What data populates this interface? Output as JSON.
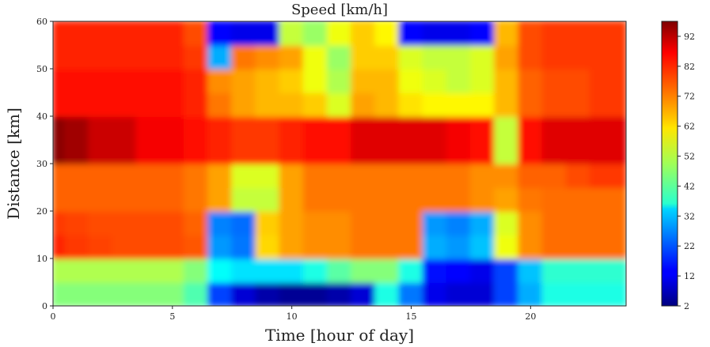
{
  "chart_data": {
    "type": "heatmap",
    "title": "Speed [km/h]",
    "xlabel": "Time [hour of day]",
    "ylabel": "Distance [km]",
    "xlim": [
      0,
      24
    ],
    "ylim": [
      0,
      60
    ],
    "xticks": [
      0,
      5,
      10,
      15,
      20
    ],
    "yticks": [
      0,
      10,
      20,
      30,
      40,
      50,
      60
    ],
    "colorbar": {
      "min": 2,
      "max": 97,
      "ticks": [
        2,
        12,
        22,
        32,
        42,
        52,
        62,
        72,
        82,
        92
      ]
    },
    "x": [
      0,
      1,
      2,
      3,
      4,
      5,
      6,
      7,
      8,
      9,
      10,
      11,
      12,
      13,
      14,
      15,
      16,
      17,
      18,
      19,
      20,
      21,
      22,
      23,
      24
    ],
    "y": [
      2.5,
      7.5,
      12.5,
      17.5,
      22.5,
      27.5,
      32.5,
      37.5,
      42.5,
      47.5,
      52.5,
      57.5
    ],
    "z": [
      [
        50,
        50,
        50,
        50,
        50,
        50,
        45,
        20,
        10,
        6,
        4,
        4,
        6,
        10,
        40,
        25,
        12,
        10,
        10,
        20,
        30,
        40,
        40,
        40,
        40
      ],
      [
        54,
        54,
        54,
        54,
        54,
        54,
        50,
        38,
        35,
        35,
        35,
        40,
        46,
        50,
        50,
        40,
        15,
        14,
        12,
        20,
        32,
        42,
        42,
        42,
        42
      ],
      [
        82,
        80,
        79,
        78,
        78,
        78,
        77,
        28,
        25,
        65,
        70,
        72,
        72,
        74,
        74,
        74,
        30,
        28,
        32,
        60,
        72,
        75,
        75,
        75,
        75
      ],
      [
        80,
        79,
        78,
        78,
        78,
        78,
        76,
        26,
        24,
        66,
        70,
        72,
        72,
        74,
        74,
        74,
        28,
        26,
        30,
        58,
        72,
        75,
        75,
        75,
        75
      ],
      [
        76,
        76,
        76,
        76,
        76,
        76,
        74,
        70,
        56,
        56,
        70,
        74,
        74,
        74,
        74,
        74,
        74,
        74,
        72,
        70,
        74,
        75,
        75,
        75,
        75
      ],
      [
        76,
        76,
        76,
        76,
        76,
        76,
        74,
        70,
        58,
        58,
        70,
        74,
        74,
        74,
        74,
        74,
        74,
        74,
        72,
        72,
        76,
        76,
        78,
        80,
        80
      ],
      [
        96,
        94,
        90,
        90,
        86,
        86,
        84,
        82,
        80,
        80,
        82,
        84,
        84,
        88,
        88,
        88,
        88,
        86,
        84,
        56,
        84,
        88,
        88,
        88,
        88
      ],
      [
        96,
        94,
        90,
        90,
        86,
        86,
        84,
        82,
        80,
        80,
        82,
        84,
        84,
        88,
        88,
        88,
        88,
        86,
        84,
        56,
        84,
        88,
        88,
        88,
        88
      ],
      [
        84,
        84,
        84,
        84,
        84,
        84,
        82,
        74,
        70,
        68,
        68,
        66,
        58,
        70,
        68,
        64,
        62,
        62,
        62,
        68,
        76,
        78,
        78,
        80,
        80
      ],
      [
        84,
        84,
        84,
        84,
        84,
        84,
        82,
        72,
        70,
        68,
        66,
        60,
        54,
        68,
        68,
        60,
        58,
        56,
        58,
        68,
        76,
        78,
        78,
        80,
        80
      ],
      [
        82,
        82,
        82,
        82,
        82,
        82,
        80,
        30,
        74,
        72,
        70,
        60,
        52,
        66,
        66,
        58,
        56,
        56,
        58,
        70,
        78,
        80,
        80,
        80,
        80
      ],
      [
        82,
        82,
        82,
        82,
        82,
        82,
        78,
        14,
        12,
        12,
        56,
        52,
        60,
        66,
        62,
        14,
        12,
        12,
        14,
        68,
        78,
        80,
        80,
        80,
        80
      ]
    ]
  }
}
